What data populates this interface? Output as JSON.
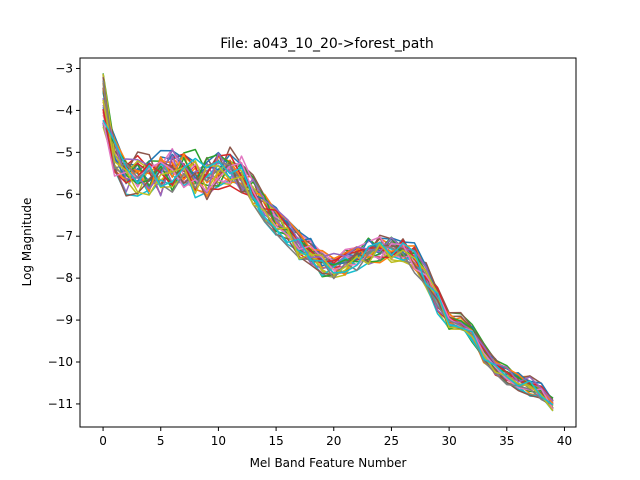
{
  "chart_data": {
    "type": "line",
    "title": "File: a043_10_20->forest_path",
    "xlabel": "Mel Band Feature Number",
    "ylabel": "Log Magnitude",
    "xlim": [
      -2,
      41
    ],
    "ylim": [
      -11.55,
      -2.75
    ],
    "xticks": [
      0,
      5,
      10,
      15,
      20,
      25,
      30,
      35,
      40
    ],
    "yticks": [
      -3,
      -4,
      -5,
      -6,
      -7,
      -8,
      -9,
      -10,
      -11
    ],
    "xtick_labels": [
      "0",
      "5",
      "10",
      "15",
      "20",
      "25",
      "30",
      "35",
      "40"
    ],
    "ytick_labels": [
      "−3",
      "−4",
      "−5",
      "−6",
      "−7",
      "−8",
      "−9",
      "−10",
      "−11"
    ],
    "grid": false,
    "legend": "none",
    "x": [
      0,
      1,
      2,
      3,
      4,
      5,
      6,
      7,
      8,
      9,
      10,
      11,
      12,
      13,
      14,
      15,
      16,
      17,
      18,
      19,
      20,
      21,
      22,
      23,
      24,
      25,
      26,
      27,
      28,
      29,
      30,
      31,
      32,
      33,
      34,
      35,
      36,
      37,
      38,
      39
    ],
    "base_profile": [
      -3.9,
      -5.1,
      -5.5,
      -5.5,
      -5.6,
      -5.5,
      -5.4,
      -5.4,
      -5.5,
      -5.6,
      -5.5,
      -5.4,
      -5.6,
      -5.9,
      -6.3,
      -6.6,
      -6.9,
      -7.2,
      -7.4,
      -7.6,
      -7.7,
      -7.6,
      -7.45,
      -7.35,
      -7.3,
      -7.3,
      -7.35,
      -7.5,
      -7.9,
      -8.5,
      -9.0,
      -9.05,
      -9.3,
      -9.8,
      -10.1,
      -10.3,
      -10.45,
      -10.55,
      -10.7,
      -11.0
    ],
    "series_colors": [
      "#1f77b4",
      "#ff7f0e",
      "#2ca02c",
      "#d62728",
      "#9467bd",
      "#8c564b",
      "#e377c2",
      "#7f7f7f",
      "#bcbd22",
      "#17becf"
    ],
    "series_count": 30,
    "noise_amplitude": 0.25
  }
}
